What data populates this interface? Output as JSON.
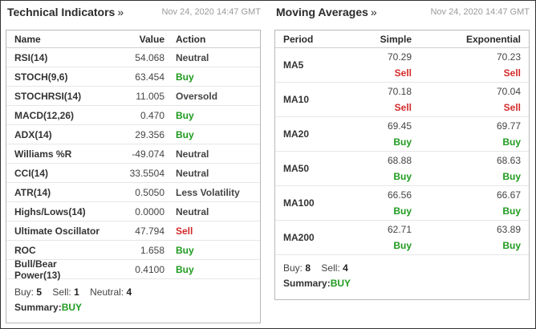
{
  "technical": {
    "title": "Technical Indicators",
    "more": "»",
    "date": "Nov 24, 2020 14:47 GMT",
    "headers": [
      "Name",
      "Value",
      "Action"
    ],
    "rows": [
      {
        "name": "RSI(14)",
        "value": "54.068",
        "action": "Neutral",
        "kind": "neutral"
      },
      {
        "name": "STOCH(9,6)",
        "value": "63.454",
        "action": "Buy",
        "kind": "buy"
      },
      {
        "name": "STOCHRSI(14)",
        "value": "11.005",
        "action": "Oversold",
        "kind": "neutral"
      },
      {
        "name": "MACD(12,26)",
        "value": "0.470",
        "action": "Buy",
        "kind": "buy"
      },
      {
        "name": "ADX(14)",
        "value": "29.356",
        "action": "Buy",
        "kind": "buy"
      },
      {
        "name": "Williams %R",
        "value": "-49.074",
        "action": "Neutral",
        "kind": "neutral"
      },
      {
        "name": "CCI(14)",
        "value": "33.5504",
        "action": "Neutral",
        "kind": "neutral"
      },
      {
        "name": "ATR(14)",
        "value": "0.5050",
        "action": "Less Volatility",
        "kind": "neutral"
      },
      {
        "name": "Highs/Lows(14)",
        "value": "0.0000",
        "action": "Neutral",
        "kind": "neutral"
      },
      {
        "name": "Ultimate Oscillator",
        "value": "47.794",
        "action": "Sell",
        "kind": "sell"
      },
      {
        "name": "ROC",
        "value": "1.658",
        "action": "Buy",
        "kind": "buy"
      },
      {
        "name": "Bull/Bear Power(13)",
        "value": "0.4100",
        "action": "Buy",
        "kind": "buy"
      }
    ],
    "counts": {
      "buy_label": "Buy:",
      "buy": "5",
      "sell_label": "Sell:",
      "sell": "1",
      "neutral_label": "Neutral:",
      "neutral": "4"
    },
    "summary_label": "Summary:",
    "summary": "BUY"
  },
  "moving": {
    "title": "Moving Averages",
    "more": "»",
    "date": "Nov 24, 2020 14:47 GMT",
    "headers": [
      "Period",
      "Simple",
      "Exponential"
    ],
    "rows": [
      {
        "period": "MA5",
        "simple": "70.29",
        "simple_action": "Sell",
        "simple_kind": "sell",
        "exp": "70.23",
        "exp_action": "Sell",
        "exp_kind": "sell"
      },
      {
        "period": "MA10",
        "simple": "70.18",
        "simple_action": "Sell",
        "simple_kind": "sell",
        "exp": "70.04",
        "exp_action": "Sell",
        "exp_kind": "sell"
      },
      {
        "period": "MA20",
        "simple": "69.45",
        "simple_action": "Buy",
        "simple_kind": "buy",
        "exp": "69.77",
        "exp_action": "Buy",
        "exp_kind": "buy"
      },
      {
        "period": "MA50",
        "simple": "68.88",
        "simple_action": "Buy",
        "simple_kind": "buy",
        "exp": "68.63",
        "exp_action": "Buy",
        "exp_kind": "buy"
      },
      {
        "period": "MA100",
        "simple": "66.56",
        "simple_action": "Buy",
        "simple_kind": "buy",
        "exp": "66.67",
        "exp_action": "Buy",
        "exp_kind": "buy"
      },
      {
        "period": "MA200",
        "simple": "62.71",
        "simple_action": "Buy",
        "simple_kind": "buy",
        "exp": "63.89",
        "exp_action": "Buy",
        "exp_kind": "buy"
      }
    ],
    "counts": {
      "buy_label": "Buy:",
      "buy": "8",
      "sell_label": "Sell:",
      "sell": "4"
    },
    "summary_label": "Summary:",
    "summary": "BUY"
  },
  "colors": {
    "buy": "#1f9b1f",
    "sell": "#d42a2a",
    "border": "#b9b9b9"
  }
}
